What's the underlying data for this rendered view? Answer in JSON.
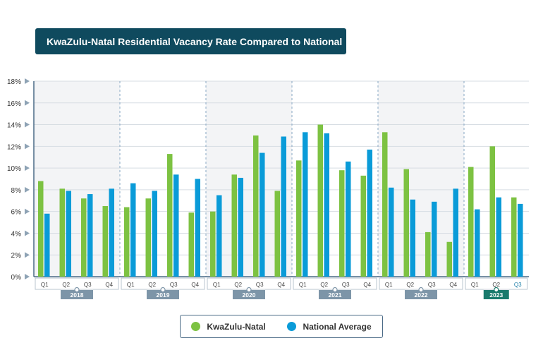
{
  "header": {
    "title": "KwaZulu-Natal Residential Vacancy Rate Compared to National"
  },
  "colors": {
    "kzn": "#7dc242",
    "national": "#0a9bd8",
    "year_badge": "#7d95a8",
    "year_badge_active": "#1a7a6c",
    "axis": "#4a6a86"
  },
  "chart_data": {
    "type": "bar",
    "title": "KwaZulu-Natal Residential Vacancy Rate Compared to National",
    "ylim": [
      0,
      18
    ],
    "yticks": [
      "0%",
      "2%",
      "4%",
      "6%",
      "8%",
      "10%",
      "12%",
      "14%",
      "16%",
      "18%"
    ],
    "years": [
      {
        "label": "2018",
        "quarters": [
          "Q1",
          "Q2",
          "Q3",
          "Q4"
        ]
      },
      {
        "label": "2019",
        "quarters": [
          "Q1",
          "Q2",
          "Q3",
          "Q4"
        ]
      },
      {
        "label": "2020",
        "quarters": [
          "Q1",
          "Q2",
          "Q3",
          "Q4"
        ]
      },
      {
        "label": "2021",
        "quarters": [
          "Q1",
          "Q2",
          "Q3",
          "Q4"
        ]
      },
      {
        "label": "2022",
        "quarters": [
          "Q1",
          "Q2",
          "Q3",
          "Q4"
        ]
      },
      {
        "label": "2023",
        "quarters": [
          "Q1",
          "Q2",
          "Q3"
        ]
      }
    ],
    "series": [
      {
        "name": "KwaZulu-Natal",
        "values": [
          8.8,
          8.1,
          7.2,
          6.5,
          6.4,
          7.2,
          11.3,
          5.9,
          6.0,
          9.4,
          13.0,
          7.9,
          10.7,
          14.0,
          9.8,
          9.3,
          13.3,
          9.9,
          4.1,
          3.2,
          10.1,
          12.0,
          7.3
        ]
      },
      {
        "name": "National Average",
        "values": [
          5.8,
          7.9,
          7.6,
          8.1,
          8.6,
          7.9,
          9.4,
          9.0,
          7.5,
          9.1,
          11.4,
          12.9,
          13.3,
          13.2,
          10.6,
          11.7,
          8.2,
          7.1,
          6.9,
          8.1,
          6.2,
          7.3,
          6.7
        ]
      }
    ],
    "legend_position": "bottom-center",
    "grid": true
  }
}
